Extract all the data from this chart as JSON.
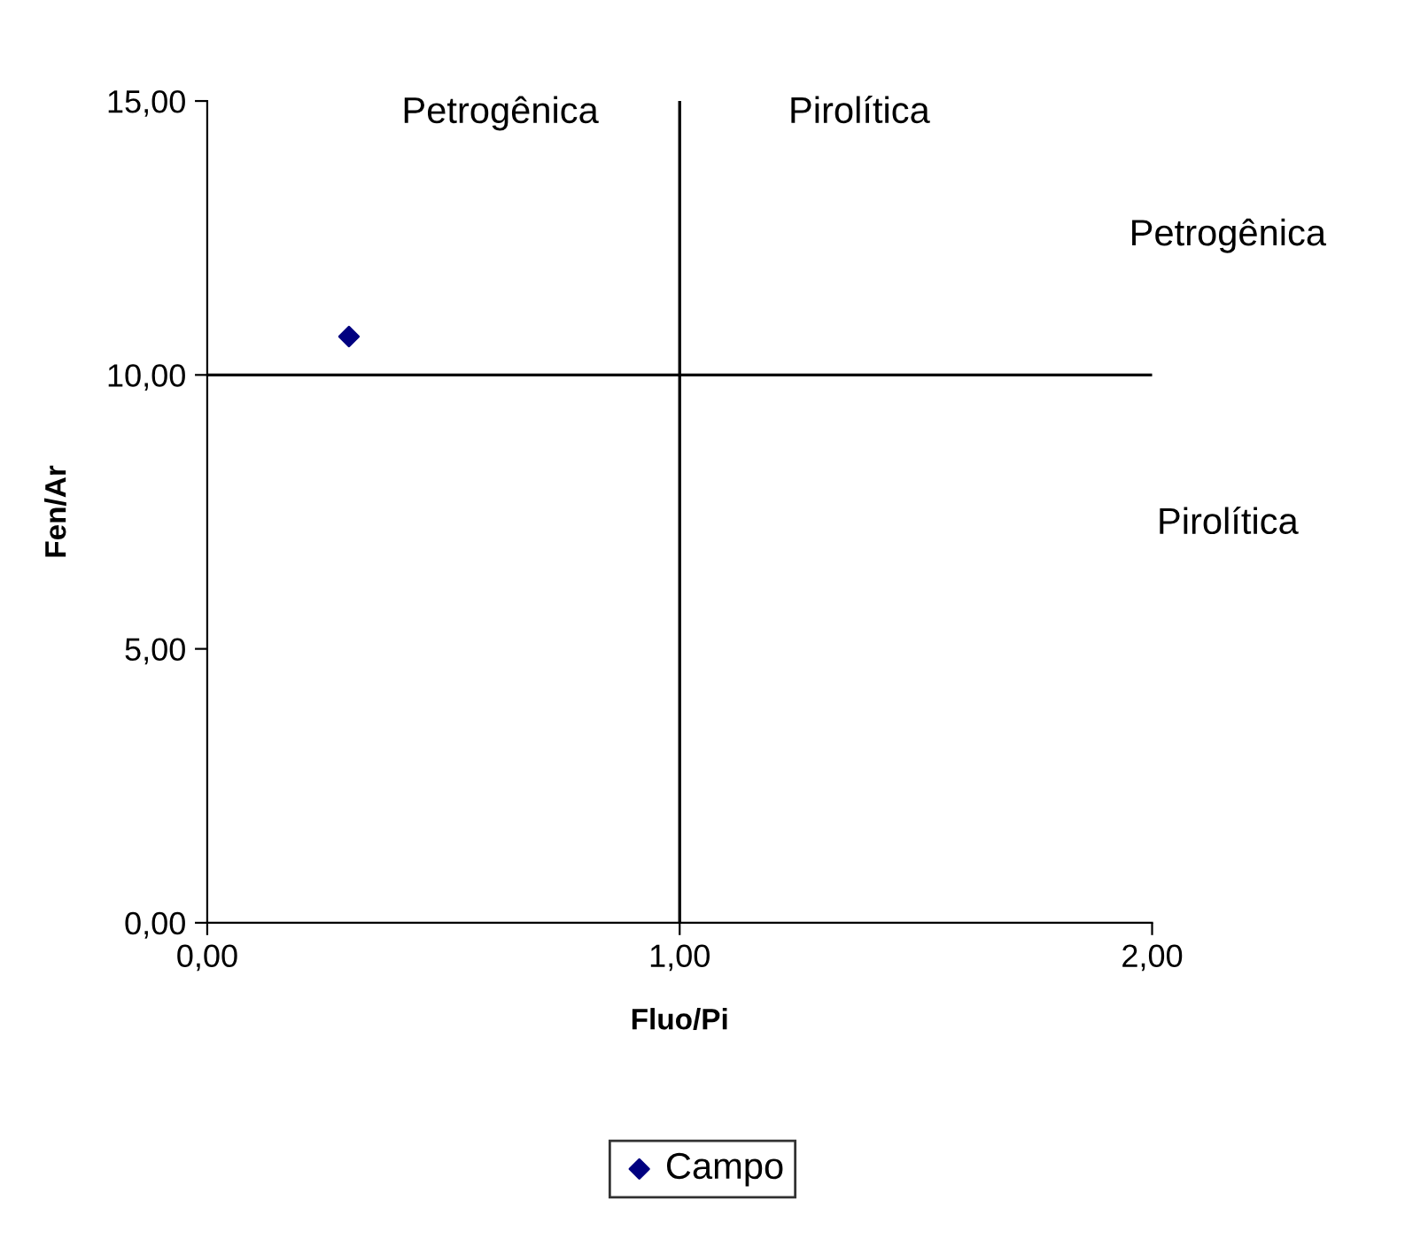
{
  "chart_data": {
    "type": "scatter",
    "xlabel": "Fluo/Pi",
    "ylabel": "Fen/Ar",
    "x": [
      0.3
    ],
    "series": [
      {
        "name": "Campo",
        "color": "#000080",
        "values": [
          10.7
        ]
      }
    ],
    "xlim": [
      0,
      2
    ],
    "ylim": [
      0,
      15
    ],
    "xticks": [
      {
        "value": 0,
        "label": "0,00"
      },
      {
        "value": 1,
        "label": "1,00"
      },
      {
        "value": 2,
        "label": "2,00"
      }
    ],
    "yticks": [
      {
        "value": 0,
        "label": "0,00"
      },
      {
        "value": 5,
        "label": "5,00"
      },
      {
        "value": 10,
        "label": "10,00"
      },
      {
        "value": 15,
        "label": "15,00"
      }
    ],
    "ref_lines": [
      {
        "axis": "x",
        "value": 1,
        "color": "#000000"
      },
      {
        "axis": "y",
        "value": 10,
        "color": "#000000"
      }
    ],
    "annotations": [
      "Petrogênica",
      "Pirolítica",
      "Petrogênica",
      "Pirolítica"
    ],
    "marker": "diamond",
    "legend": "bottom",
    "grid": false
  }
}
